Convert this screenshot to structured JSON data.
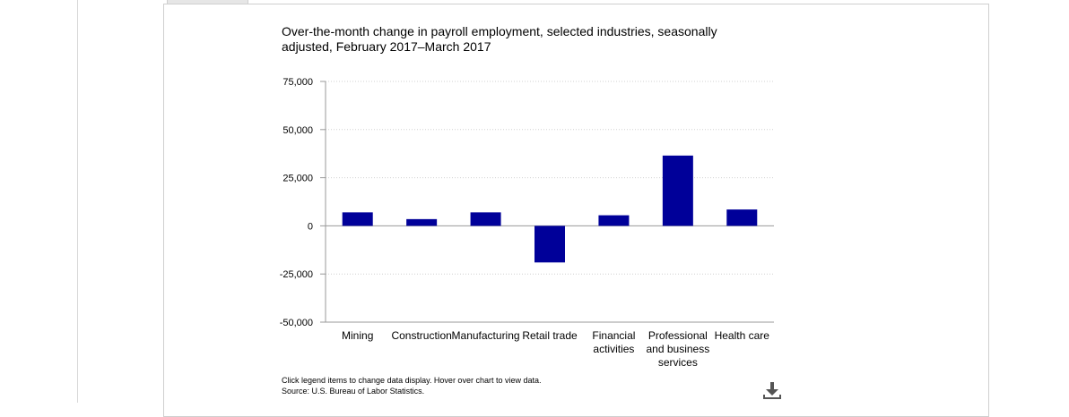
{
  "chart_data": {
    "type": "bar",
    "title": "Over-the-month change in payroll employment, selected industries, seasonally adjusted, February 2017–March 2017",
    "categories": [
      "Mining",
      "Construction",
      "Manufacturing",
      "Retail trade",
      "Financial activities",
      "Professional and business services",
      "Health care"
    ],
    "series": [
      {
        "values": [
          7000,
          3500,
          7000,
          -19000,
          5500,
          36500,
          8500
        ],
        "color": "#000099"
      }
    ],
    "yticks": [
      "75,000",
      "50,000",
      "25,000",
      "0",
      "-25,000",
      "-50,000"
    ],
    "ylim": [
      -50000,
      75000
    ],
    "grid": true,
    "xlabel": "",
    "ylabel": ""
  },
  "footnote": {
    "line1": "Click legend items to change data display. Hover over chart to view data.",
    "line2": "Source: U.S. Bureau of Labor Statistics."
  },
  "icons": {
    "download": "download-icon"
  },
  "colors": {
    "bar": "#000099",
    "axis": "#999999",
    "grid": "#d0d0d0"
  }
}
